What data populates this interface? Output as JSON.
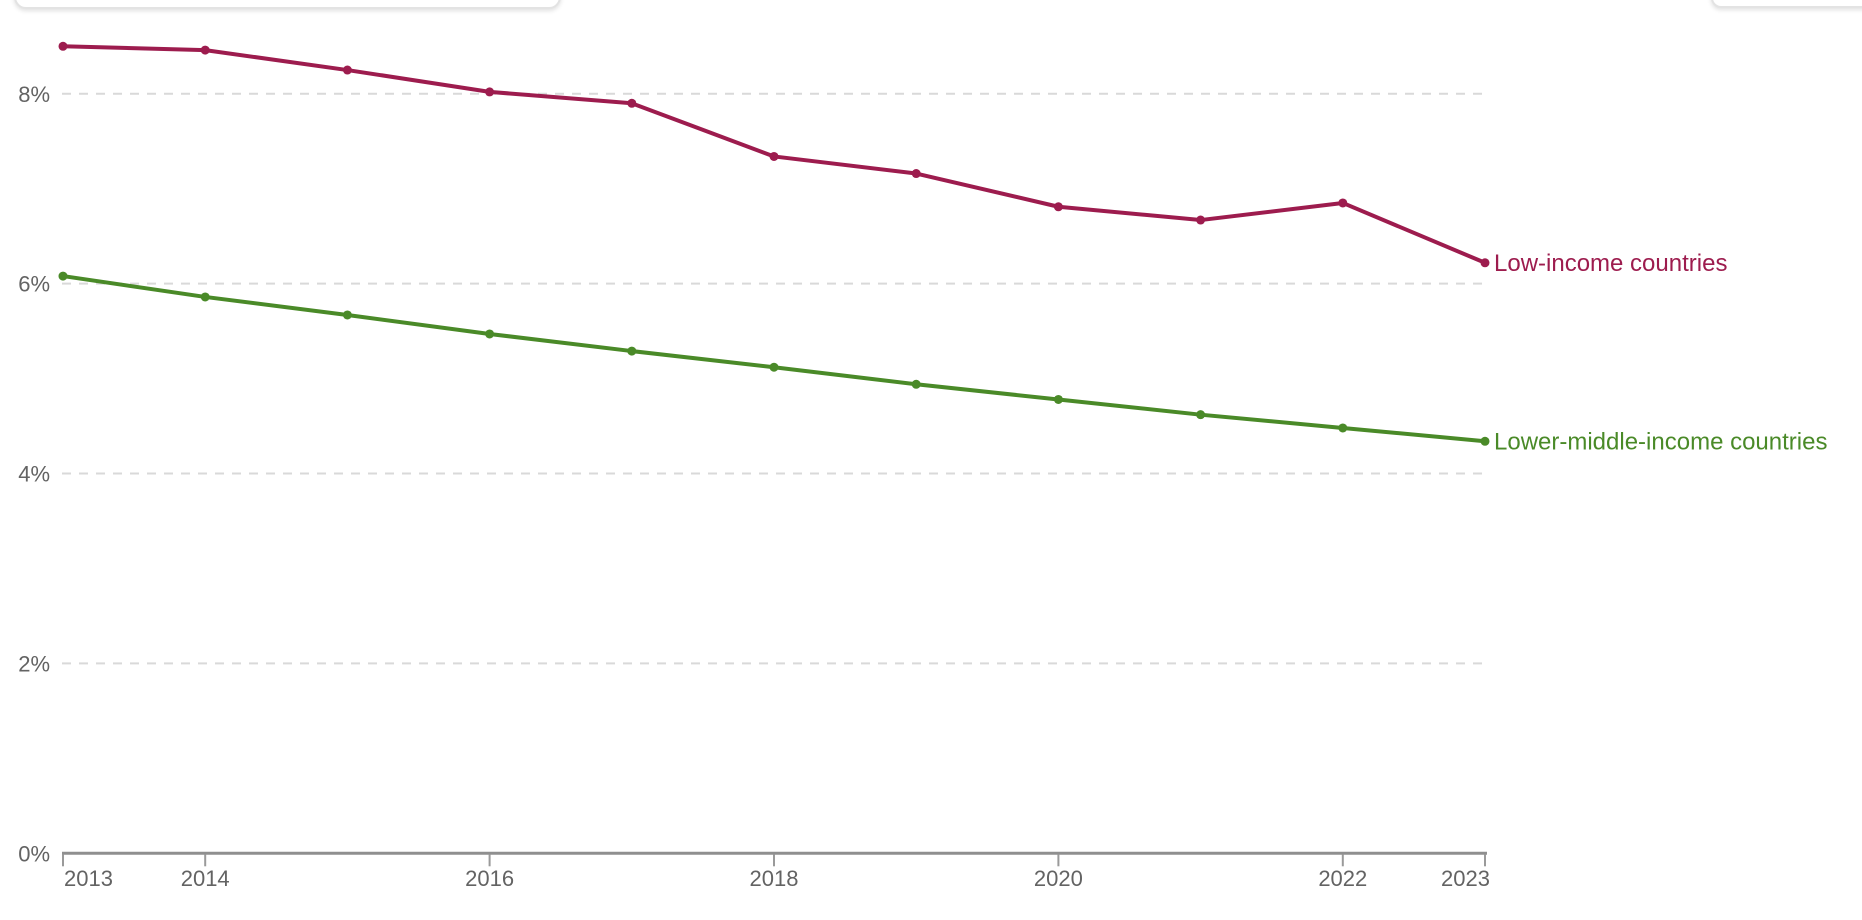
{
  "chart_data": {
    "type": "line",
    "title": "",
    "xlabel": "",
    "ylabel": "",
    "unit": "%",
    "x": [
      2013,
      2014,
      2015,
      2016,
      2017,
      2018,
      2019,
      2020,
      2021,
      2022,
      2023
    ],
    "series": [
      {
        "name": "Low-income countries",
        "color": "#9d1c4e",
        "values": [
          8.5,
          8.46,
          8.25,
          8.02,
          7.9,
          7.34,
          7.16,
          6.81,
          6.67,
          6.85,
          6.22
        ]
      },
      {
        "name": "Lower-middle-income countries",
        "color": "#4a8a28",
        "values": [
          6.08,
          5.86,
          5.67,
          5.47,
          5.29,
          5.12,
          4.94,
          4.78,
          4.62,
          4.48,
          4.34
        ]
      }
    ],
    "ylim": [
      0,
      8.7
    ],
    "yticks": [
      {
        "value": 0,
        "label": "0%"
      },
      {
        "value": 2,
        "label": "2%"
      },
      {
        "value": 4,
        "label": "4%"
      },
      {
        "value": 6,
        "label": "6%"
      },
      {
        "value": 8,
        "label": "8%"
      }
    ],
    "xticks_labeled": [
      {
        "value": 2013,
        "label": "2013"
      },
      {
        "value": 2014,
        "label": "2014"
      },
      {
        "value": 2016,
        "label": "2016"
      },
      {
        "value": 2018,
        "label": "2018"
      },
      {
        "value": 2020,
        "label": "2020"
      },
      {
        "value": 2022,
        "label": "2022"
      },
      {
        "value": 2023,
        "label": "2023"
      }
    ],
    "grid": "horizontal-dashed",
    "legend_position": "line-end-labels"
  },
  "colors": {
    "background": "#ffffff",
    "gridline": "#d9d9d9",
    "axis": "#8f8f8f",
    "tick": "#9a9a9a",
    "tick_label": "#636363",
    "series_low_income": "#9d1c4e",
    "series_lower_middle_income": "#4a8a28",
    "panel_border": "#e3e3e3"
  }
}
